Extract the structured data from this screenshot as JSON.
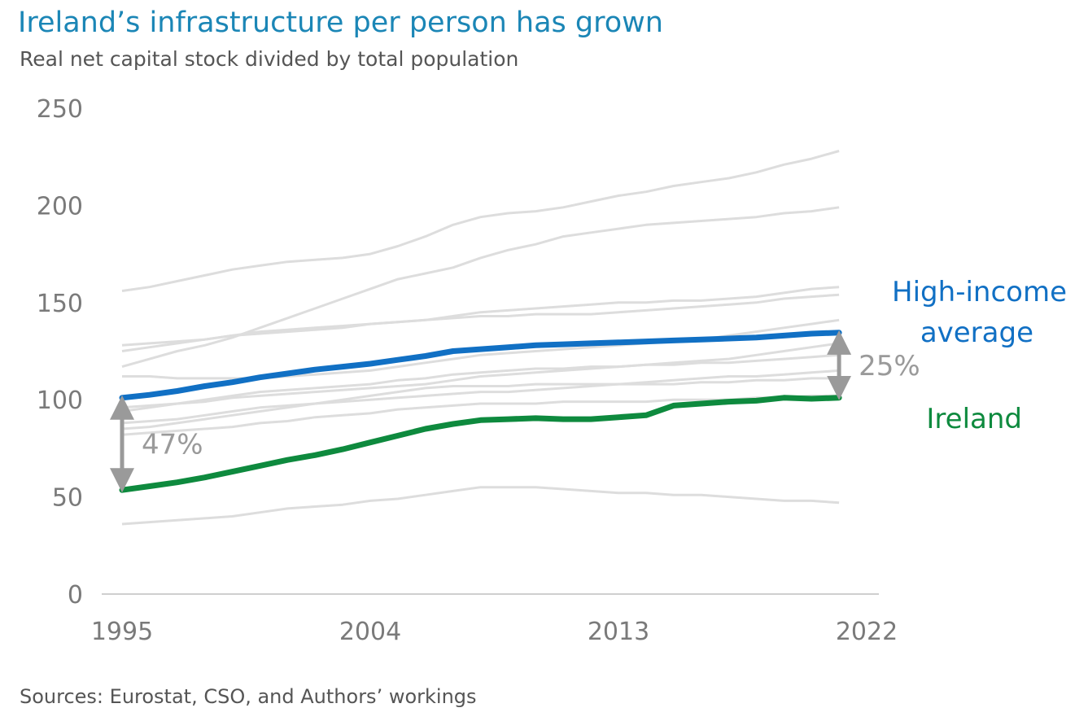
{
  "title": "Ireland’s infrastructure per person has grown",
  "subtitle": "Real net capital stock divided by total population",
  "source": "Sources: Eurostat, CSO, and Authors’ workings",
  "colors": {
    "ireland": "#0e8a3e",
    "high_income": "#1170c4",
    "other_countries": "#dddddd",
    "axis": "#cfcfcf",
    "annotation": "#9a9a9a"
  },
  "chart_data": {
    "type": "line",
    "xlim": [
      1995,
      2022
    ],
    "ylim": [
      0,
      250
    ],
    "xticks": [
      "1995",
      "2004",
      "2013",
      "2022"
    ],
    "yticks": [
      "0",
      "50",
      "100",
      "150",
      "200",
      "250"
    ],
    "grid": false,
    "x": [
      1995,
      1996,
      1997,
      1998,
      1999,
      2000,
      2001,
      2002,
      2003,
      2004,
      2005,
      2006,
      2007,
      2008,
      2009,
      2010,
      2011,
      2012,
      2013,
      2014,
      2015,
      2016,
      2017,
      2018,
      2019,
      2020,
      2021
    ],
    "series": [
      {
        "name": "High-income average",
        "highlight": true,
        "values": [
          101,
          102.5,
          104.5,
          107,
          109,
          111.5,
          113.5,
          115.5,
          117,
          118.5,
          120.5,
          122.5,
          125,
          126,
          127,
          128,
          128.5,
          129,
          129.5,
          130,
          130.5,
          131,
          131.5,
          132,
          133,
          134,
          134.5
        ]
      },
      {
        "name": "Ireland",
        "highlight": true,
        "values": [
          53.5,
          55.5,
          57.5,
          60,
          63,
          66,
          69,
          71.5,
          74.5,
          78,
          81.5,
          85,
          87.5,
          89.5,
          90,
          90.5,
          90,
          90,
          91,
          92,
          97,
          98,
          99,
          99.5,
          101,
          100.5,
          101
        ]
      },
      {
        "highlight": false,
        "values": [
          156,
          158,
          161,
          164,
          167,
          169,
          171,
          172,
          173,
          175,
          179,
          184,
          190,
          194,
          196,
          197,
          199,
          202,
          205,
          207,
          210,
          212,
          214,
          217,
          221,
          224,
          228
        ]
      },
      {
        "highlight": false,
        "values": [
          117,
          121,
          125,
          128,
          132,
          137,
          142,
          147,
          152,
          157,
          162,
          165,
          168,
          173,
          177,
          180,
          184,
          186,
          188,
          190,
          191,
          192,
          193,
          194,
          196,
          197,
          199
        ]
      },
      {
        "highlight": false,
        "values": [
          128,
          129,
          130,
          131,
          133,
          134,
          135,
          136,
          137,
          139,
          140,
          141,
          143,
          145,
          146,
          147,
          148,
          149,
          150,
          150,
          151,
          151,
          152,
          153,
          155,
          157,
          158
        ]
      },
      {
        "highlight": false,
        "values": [
          125,
          127,
          129,
          131,
          133,
          135,
          136,
          137,
          138,
          139,
          140,
          141,
          142,
          143,
          143,
          144,
          144,
          144,
          145,
          146,
          147,
          148,
          149,
          150,
          152,
          153,
          154
        ]
      },
      {
        "highlight": false,
        "values": [
          112,
          112,
          111,
          111,
          111,
          111,
          112,
          113,
          114,
          115,
          117,
          119,
          121,
          123,
          124,
          125,
          126,
          127,
          128,
          129,
          130,
          131,
          133,
          135,
          137,
          139,
          141
        ]
      },
      {
        "highlight": false,
        "values": [
          96,
          97,
          98,
          99,
          101,
          102,
          103,
          104,
          105,
          106,
          107,
          108,
          110,
          112,
          113,
          114,
          115,
          116,
          117,
          118,
          119,
          120,
          121,
          123,
          125,
          127,
          129
        ]
      },
      {
        "highlight": false,
        "values": [
          94,
          96,
          98,
          100,
          102,
          104,
          105,
          106,
          107,
          108,
          110,
          111,
          113,
          114,
          115,
          116,
          116,
          117,
          117,
          118,
          118,
          119,
          119,
          120,
          121,
          122,
          123
        ]
      },
      {
        "highlight": false,
        "values": [
          88,
          89,
          90,
          92,
          94,
          96,
          97,
          98,
          99,
          100,
          101,
          102,
          103,
          104,
          104,
          105,
          106,
          107,
          108,
          109,
          110,
          111,
          112,
          112,
          113,
          114,
          115
        ]
      },
      {
        "highlight": false,
        "values": [
          85,
          86,
          88,
          90,
          92,
          94,
          96,
          98,
          100,
          102,
          104,
          106,
          107,
          107,
          107,
          108,
          108,
          108,
          108,
          108,
          108,
          109,
          109,
          110,
          110,
          111,
          111
        ]
      },
      {
        "highlight": false,
        "values": [
          82,
          83,
          84,
          85,
          86,
          88,
          89,
          91,
          92,
          93,
          95,
          96,
          97,
          98,
          98,
          98,
          99,
          99,
          99,
          99,
          100,
          100,
          100,
          101,
          101,
          102,
          102
        ]
      },
      {
        "highlight": false,
        "values": [
          36,
          37,
          38,
          39,
          40,
          42,
          44,
          45,
          46,
          48,
          49,
          51,
          53,
          55,
          55,
          55,
          54,
          53,
          52,
          52,
          51,
          51,
          50,
          49,
          48,
          48,
          47
        ]
      }
    ],
    "labels": {
      "high_income": [
        "High-income",
        "average"
      ],
      "ireland": "Ireland"
    },
    "annotations": [
      {
        "label": "47%",
        "x": 1995,
        "y_from": 53.5,
        "y_to": 101
      },
      {
        "label": "25%",
        "x": 2021,
        "y_from": 101,
        "y_to": 134.5
      }
    ]
  }
}
